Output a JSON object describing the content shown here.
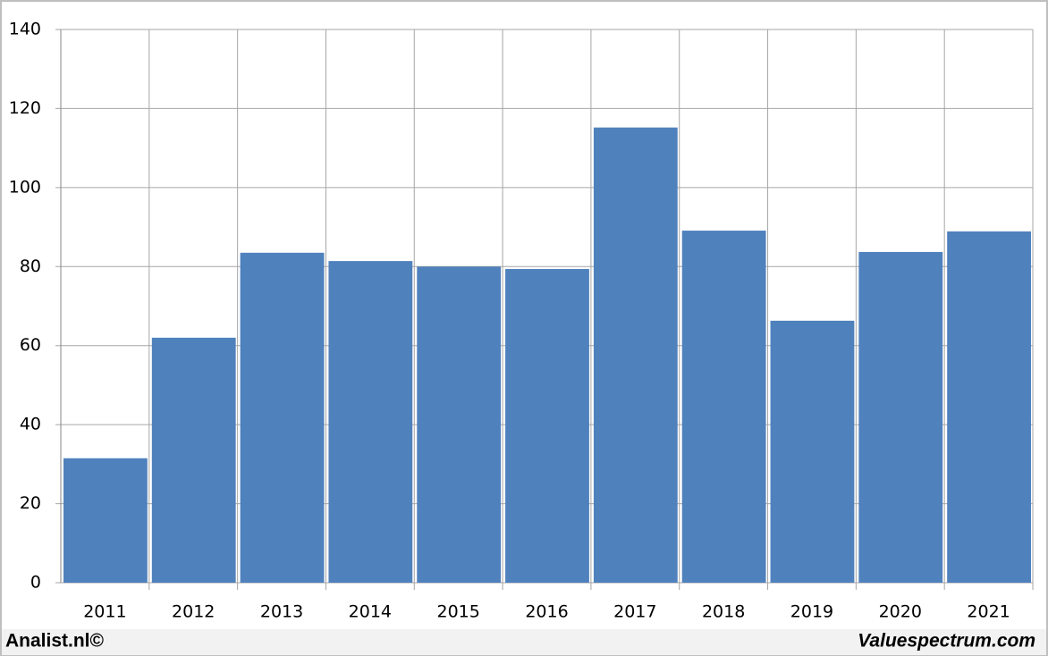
{
  "chart_data": {
    "type": "bar",
    "categories": [
      "2011",
      "2012",
      "2013",
      "2014",
      "2015",
      "2016",
      "2017",
      "2018",
      "2019",
      "2020",
      "2021"
    ],
    "values": [
      31.5,
      62,
      83.5,
      81.4,
      80,
      79.4,
      115.2,
      89.1,
      66.3,
      83.7,
      88.9
    ],
    "color": "#4f81bd",
    "ylim": [
      0,
      140
    ],
    "yticks": [
      0,
      20,
      40,
      60,
      80,
      100,
      120,
      140
    ],
    "grid": true
  },
  "footer": {
    "left": "Analist.nl©",
    "right": "Valuespectrum.com"
  }
}
